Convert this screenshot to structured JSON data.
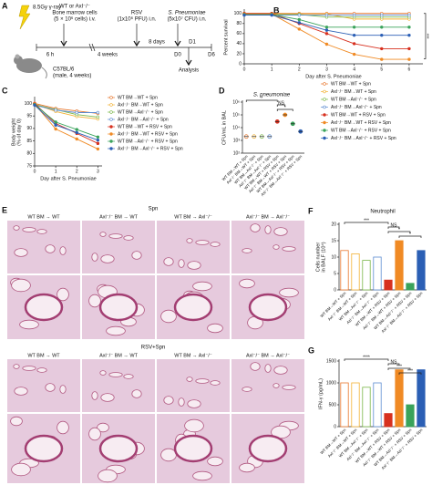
{
  "panel_a": {
    "panel": "A",
    "dose": "8.5Gy γ-ray",
    "donor": "WT or Axl⁻/⁻",
    "cells": "Bone marrow cells",
    "cells_dose": "(5 × 10⁶ cells) i.v.",
    "rsv": "RSV",
    "rsv_dose": "(1x10⁶ PFU) i.n.",
    "spn": "S. Pneumoniae",
    "spn_dose": "(5x10⁷ CFU) i.n.",
    "t1": "6 h",
    "t2": "4 weeks",
    "t3": "8 days",
    "d0": "D0",
    "d1": "D1",
    "d6": "D6",
    "mouse": "C57BL/6",
    "mouse_info": "(male, 4 weeks)",
    "analysis": "Analysis"
  },
  "panel_e": {
    "panel": "E",
    "top": "Spn",
    "bottom": "RSV+Spn",
    "columns": [
      "WT BM → WT",
      "Axl⁻/⁻ BM → WT",
      "WT BM → Axl⁻/⁻",
      "Axl⁻/⁻ BM → Axl⁻/⁻"
    ]
  },
  "chart_data": [
    {
      "type": "line",
      "panel": "B",
      "ylabel": [
        "Percent survival"
      ],
      "xlabel": "Day after S. Pneumoniae",
      "x": [
        0,
        1,
        2,
        3,
        4,
        5,
        6
      ],
      "xlim": [
        0,
        6.5
      ],
      "xticks": [
        0,
        1,
        2,
        3,
        4,
        5,
        6
      ],
      "ylim": [
        0,
        105
      ],
      "yticks": [
        0,
        20,
        40,
        60,
        80,
        100
      ],
      "annotations": [
        "***"
      ],
      "series": [
        {
          "name": "WT BM→WT + Spn",
          "color": "#e8762c",
          "values": [
            100,
            100,
            100,
            100,
            100,
            100,
            100
          ]
        },
        {
          "name": "Axl⁻/⁻ BM→WT + Spn",
          "color": "#f2b134",
          "values": [
            100,
            100,
            100,
            100,
            90,
            90,
            90
          ]
        },
        {
          "name": "WT BM→Axl⁻/⁻ + Spn",
          "color": "#7ab648",
          "values": [
            100,
            100,
            100,
            95,
            95,
            95,
            95
          ]
        },
        {
          "name": "Axl⁻/⁻ BM→Axl⁻/⁻ + Spn",
          "color": "#5b8bd0",
          "values": [
            100,
            100,
            100,
            100,
            100,
            100,
            100
          ]
        },
        {
          "name": "WT BM→WT + RSV + Spn",
          "color": "#d7301f",
          "values": [
            100,
            100,
            80,
            60,
            40,
            30,
            30
          ]
        },
        {
          "name": "Axl⁻/⁻ BM→WT + RSV + Spn",
          "color": "#f08a24",
          "values": [
            100,
            100,
            70,
            40,
            20,
            10,
            10
          ]
        },
        {
          "name": "WT BM→Axl⁻/⁻ + RSV + Spn",
          "color": "#3aa35b",
          "values": [
            100,
            100,
            90,
            75,
            75,
            75,
            75
          ]
        },
        {
          "name": "Axl⁻/⁻ BM→Axl⁻/⁻ + RSV + Spn",
          "color": "#2b5fb5",
          "values": [
            100,
            100,
            85,
            70,
            60,
            60,
            60
          ]
        }
      ]
    },
    {
      "type": "line",
      "panel": "C",
      "ylabel": [
        "Body weight",
        "(% of day 0)"
      ],
      "xlabel": "Day after S. Pneumoniae",
      "x": [
        0,
        1,
        2,
        3
      ],
      "xlim": [
        0,
        3.2
      ],
      "xticks": [
        0,
        1,
        2,
        3
      ],
      "ylim": [
        75,
        102
      ],
      "yticks": [
        75,
        80,
        85,
        90,
        95,
        100
      ],
      "series": [
        {
          "name": "WT BM→WT + Spn",
          "color": "#e8762c",
          "values": [
            100,
            98,
            97,
            96
          ]
        },
        {
          "name": "Axl⁻/⁻ BM→WT + Spn",
          "color": "#f2b134",
          "values": [
            100,
            97,
            95,
            94
          ]
        },
        {
          "name": "WT BM→Axl⁻/⁻ + Spn",
          "color": "#7ab648",
          "values": [
            100,
            98,
            96,
            95
          ]
        },
        {
          "name": "Axl⁻/⁻ BM→Axl⁻/⁻ + Spn",
          "color": "#5b8bd0",
          "values": [
            100,
            98,
            97,
            97
          ]
        },
        {
          "name": "WT BM→WT + RSV + Spn",
          "color": "#d7301f",
          "values": [
            100,
            92,
            88,
            84
          ]
        },
        {
          "name": "Axl⁻/⁻ BM→WT + RSV + Spn",
          "color": "#f08a24",
          "values": [
            100,
            90,
            86,
            82
          ]
        },
        {
          "name": "WT BM→Axl⁻/⁻ + RSV + Spn",
          "color": "#3aa35b",
          "values": [
            100,
            93,
            90,
            87
          ]
        },
        {
          "name": "Axl⁻/⁻ BM→Axl⁻/⁻ + RSV + Spn",
          "color": "#2b5fb5",
          "values": [
            100,
            92,
            89,
            86
          ]
        }
      ]
    },
    {
      "type": "dot",
      "panel": "D",
      "title": "S. pneumoniae",
      "ylabel": [
        "CFU/mL in BAL"
      ],
      "log": true,
      "ylim": [
        100,
        1000000
      ],
      "yticks": [
        {
          "value": 100,
          "label": "10²"
        },
        {
          "value": 1000,
          "label": "10³"
        },
        {
          "value": 10000,
          "label": "10⁴"
        },
        {
          "value": 100000,
          "label": "10⁵"
        },
        {
          "value": 1000000,
          "label": "10⁶"
        }
      ],
      "annotations": [
        "*",
        "NS",
        "*"
      ],
      "categories": [
        "WT BM→WT + Spn",
        "Axl⁻/⁻ BM→WT + Spn",
        "WT BM→Axl⁻/⁻ + Spn",
        "Axl⁻/⁻ BM→Axl⁻/⁻ + Spn",
        "WT BM→WT + RSV + Spn",
        "Axl⁻/⁻ BM→WT + RSV + Spn",
        "WT BM→Axl⁻/⁻ + RSV + Spn",
        "Axl⁻/⁻ BM→Axl⁻/⁻ + RSV + Spn"
      ],
      "colors": [
        "#e8762c",
        "#f2b134",
        "#7ab648",
        "#5b8bd0",
        "#d7301f",
        "#f08a24",
        "#3aa35b",
        "#2b5fb5"
      ],
      "values": [
        2000,
        2000,
        2000,
        2000,
        30000,
        100000,
        20000,
        5000
      ]
    },
    {
      "type": "bar",
      "panel": "F",
      "title": "Neutrophil",
      "ylabel": [
        "Cells number",
        "in BALF (10⁴)"
      ],
      "ylim": [
        0,
        20
      ],
      "yticks": [
        0,
        5,
        10,
        15,
        20
      ],
      "annotations": [
        "***",
        "NS",
        "*",
        "*"
      ],
      "categories": [
        "WT BM→WT + Spn",
        "Axl⁻/⁻ BM→WT + Spn",
        "WT BM→Axl⁻/⁻ + Spn",
        "Axl⁻/⁻ BM→Axl⁻/⁻ + Spn",
        "WT BM→WT + RSV + Spn",
        "Axl⁻/⁻ BM→WT + RSV + Spn",
        "WT BM→Axl⁻/⁻ + RSV + Spn",
        "Axl⁻/⁻ BM→Axl⁻/⁻ + RSV + Spn"
      ],
      "colors": [
        "#e8762c",
        "#f2b134",
        "#7ab648",
        "#5b8bd0",
        "#d7301f",
        "#f08a24",
        "#3aa35b",
        "#2b5fb5"
      ],
      "values": [
        12,
        11,
        9,
        10,
        3,
        15,
        2,
        12
      ]
    },
    {
      "type": "bar",
      "panel": "G",
      "ylabel": [
        "IFN-γ (pg/mL)"
      ],
      "ylim": [
        0,
        1500
      ],
      "yticks": [
        0,
        500,
        1000,
        1500
      ],
      "annotations": [
        "****",
        "NS",
        "***",
        "***"
      ],
      "categories": [
        "WT BM→WT + Spn",
        "Axl⁻/⁻ BM→WT + Spn",
        "WT BM→Axl⁻/⁻ + Spn",
        "Axl⁻/⁻ BM→Axl⁻/⁻ + Spn",
        "WT BM→WT + RSV + Spn",
        "Axl⁻/⁻ BM→WT + RSV + Spn",
        "WT BM→Axl⁻/⁻ + RSV + Spn",
        "Axl⁻/⁻ BM→Axl⁻/⁻ + RSV + Spn"
      ],
      "colors": [
        "#e8762c",
        "#f2b134",
        "#7ab648",
        "#5b8bd0",
        "#d7301f",
        "#f08a24",
        "#3aa35b",
        "#2b5fb5"
      ],
      "values": [
        1000,
        1000,
        900,
        1000,
        300,
        1300,
        500,
        1300
      ]
    }
  ]
}
